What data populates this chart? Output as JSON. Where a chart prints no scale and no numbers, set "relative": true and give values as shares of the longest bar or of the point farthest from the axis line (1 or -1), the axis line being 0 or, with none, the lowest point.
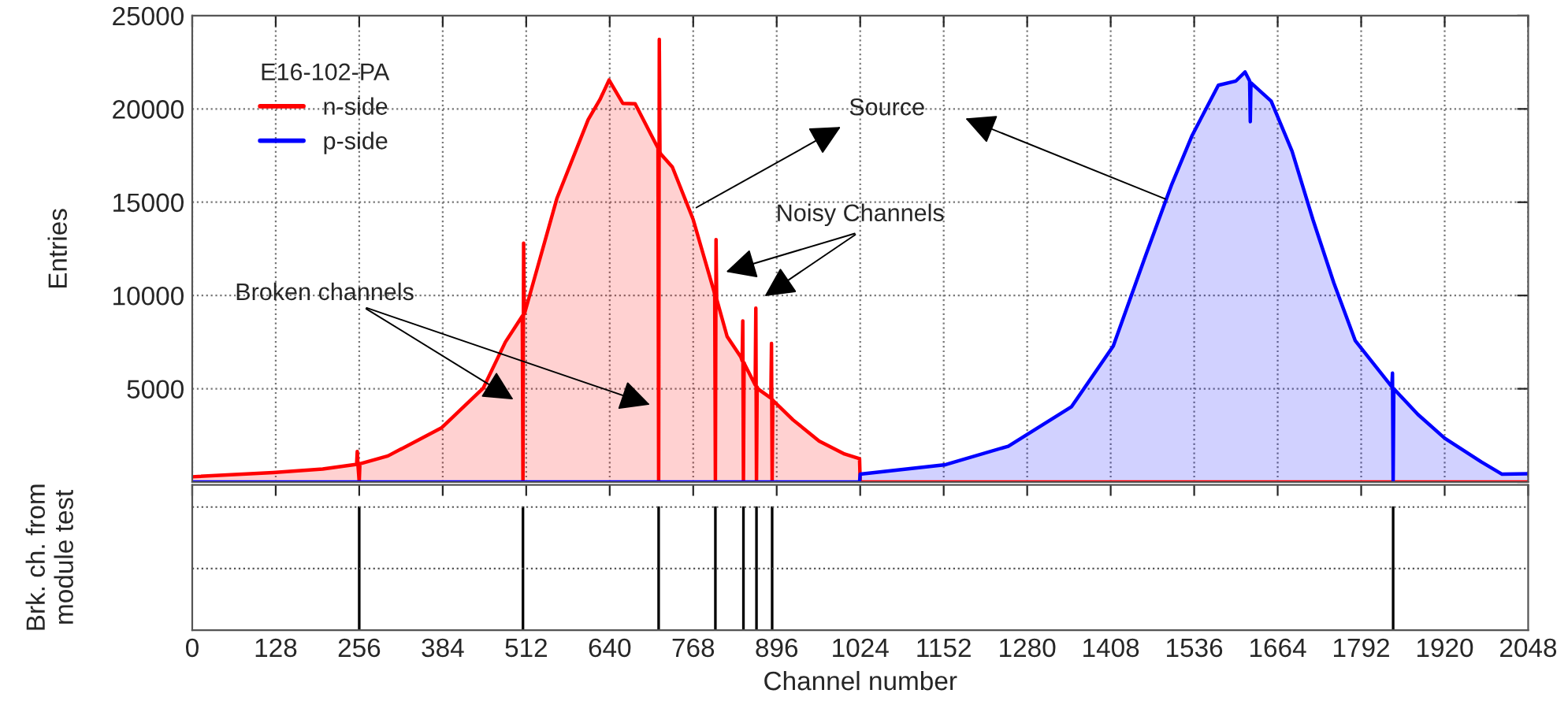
{
  "chart_data": [
    {
      "type": "area",
      "ylabel": "Entries",
      "legend_title": "E16-102-PA",
      "legend": "top left",
      "grid": true,
      "tick_labels": "y",
      "xlim": [
        0,
        2048
      ],
      "xticks": [
        0,
        128,
        256,
        384,
        512,
        640,
        768,
        896,
        1024,
        1152,
        1280,
        1408,
        1536,
        1664,
        1792,
        1920,
        2048
      ],
      "ylim": [
        0,
        25000
      ],
      "yticks": [
        {
          "value": 0,
          "label": null
        },
        5000,
        10000,
        15000,
        20000,
        25000
      ],
      "annotations": [
        {
          "text": "Source",
          "x": 767,
          "y": 14600
        },
        {
          "text": "Noisy Channels",
          "x": 812,
          "y": 11200
        },
        {
          "text": "Broken channels",
          "x": 498,
          "y": 4300
        }
      ],
      "series": [
        {
          "name": "n-side",
          "color": "#ff0000",
          "x": [
            0,
            124,
            200,
            248,
            252,
            253,
            254,
            256,
            257,
            300,
            382,
            446,
            480,
            506,
            507,
            508,
            509,
            510,
            559,
            607,
            625,
            639,
            660,
            679,
            704,
            714,
            715,
            716,
            717,
            718,
            736,
            768,
            800,
            801,
            802,
            803,
            804,
            820,
            841,
            843,
            844,
            845,
            846,
            847,
            863,
            864,
            865,
            866,
            867,
            887,
            888,
            889,
            890,
            891,
            921,
            961,
            1000,
            1023,
            1024,
            2047
          ],
          "values": [
            280,
            510,
            700,
            930,
            950,
            1640,
            960,
            0,
            980,
            1400,
            2900,
            5030,
            7500,
            8900,
            0,
            12800,
            9000,
            9100,
            15200,
            19430,
            20500,
            21550,
            20300,
            20280,
            18580,
            17900,
            0,
            23730,
            17700,
            17600,
            16890,
            14070,
            10200,
            10000,
            0,
            13000,
            9800,
            7800,
            6700,
            6500,
            8640,
            0,
            6400,
            6300,
            5200,
            9320,
            0,
            5100,
            5000,
            4500,
            7430,
            0,
            4400,
            4350,
            3330,
            2200,
            1500,
            1250,
            0,
            0
          ]
        },
        {
          "name": "p-side",
          "color": "#0000ff",
          "x": [
            0,
            1023,
            1024,
            1155,
            1251,
            1348,
            1412,
            1461,
            1501,
            1533,
            1573,
            1600,
            1614,
            1621,
            1622,
            1623,
            1654,
            1686,
            1718,
            1750,
            1783,
            1839,
            1840,
            1841,
            1842,
            1879,
            1920,
            1976,
            2008,
            2047
          ],
          "values": [
            0,
            0,
            420,
            930,
            1920,
            4040,
            7290,
            12090,
            15900,
            18590,
            21270,
            21500,
            21980,
            21500,
            19320,
            21400,
            20420,
            17740,
            14070,
            10680,
            7570,
            5100,
            5840,
            0,
            5000,
            3620,
            2350,
            1080,
            420,
            440
          ]
        }
      ]
    },
    {
      "type": "bar",
      "relative": true,
      "xlabel": "Channel number",
      "ylabel": "Brk. ch. from\nmodule test",
      "tick_labels": "x",
      "xlim": [
        0,
        2048
      ],
      "xticks": [
        0,
        128,
        256,
        384,
        512,
        640,
        768,
        896,
        1024,
        1152,
        1280,
        1408,
        1536,
        1664,
        1792,
        1920,
        2048
      ],
      "ref_lines": [
        {
          "axis": "y",
          "value": 1,
          "line_style": "dotted"
        },
        {
          "axis": "y",
          "value": 0.5,
          "line_style": "dotted"
        }
      ],
      "series": [
        {
          "color": "#000000",
          "x": [
            256,
            507,
            715,
            802,
            845,
            865,
            889,
            1841
          ],
          "values": [
            1,
            1,
            1,
            1,
            1,
            1,
            1,
            1
          ]
        }
      ]
    }
  ]
}
